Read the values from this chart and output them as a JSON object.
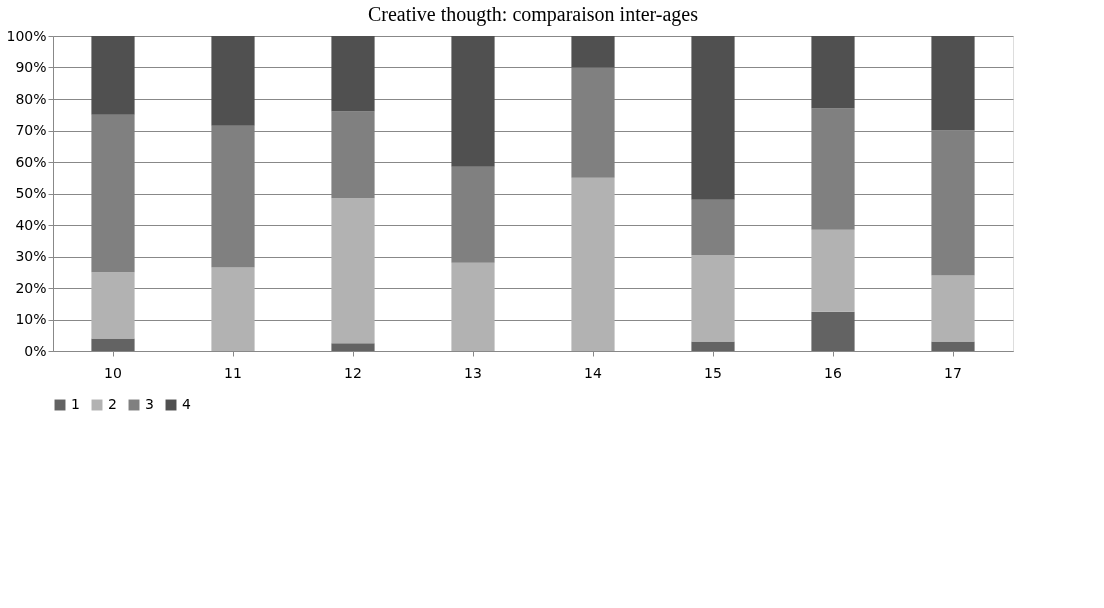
{
  "chart_data": {
    "type": "bar",
    "title": "Creative thougth: comparaison inter-ages",
    "stacked": true,
    "categories": [
      "10",
      "11",
      "12",
      "13",
      "14",
      "15",
      "16",
      "17"
    ],
    "series": [
      {
        "name": "1",
        "color": "#636363",
        "values": [
          4,
          0,
          2.5,
          0,
          0,
          3,
          12.5,
          3
        ]
      },
      {
        "name": "2",
        "color": "#b2b2b2",
        "values": [
          21,
          26.5,
          46,
          28,
          55,
          27.5,
          26,
          21
        ]
      },
      {
        "name": "3",
        "color": "#808080",
        "values": [
          50,
          45,
          27.5,
          30.5,
          35,
          17.5,
          38.5,
          46
        ]
      },
      {
        "name": "4",
        "color": "#505050",
        "values": [
          25,
          28.5,
          24,
          41.5,
          10,
          52,
          23,
          30
        ]
      }
    ],
    "ylim": [
      0,
      100
    ],
    "yticks": [
      {
        "value": 0,
        "label": "0%"
      },
      {
        "value": 10,
        "label": "10%"
      },
      {
        "value": 20,
        "label": "20%"
      },
      {
        "value": 30,
        "label": "30%"
      },
      {
        "value": 40,
        "label": "40%"
      },
      {
        "value": 50,
        "label": "50%"
      },
      {
        "value": 60,
        "label": "60%"
      },
      {
        "value": 70,
        "label": "70%"
      },
      {
        "value": 80,
        "label": "80%"
      },
      {
        "value": 90,
        "label": "90%"
      },
      {
        "value": 100,
        "label": "100%"
      }
    ],
    "grid": "y",
    "legend": "bottom"
  }
}
